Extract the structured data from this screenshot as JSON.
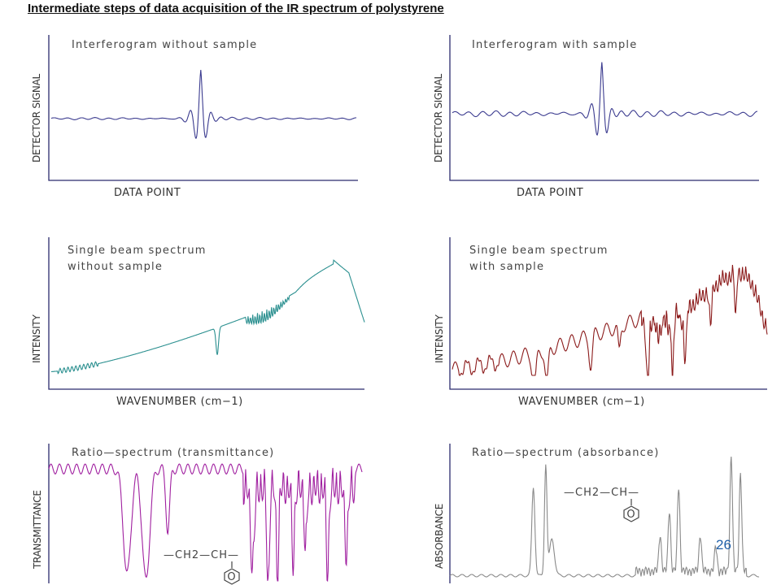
{
  "slide": {
    "title": "Intermediate steps of data acquisition of the IR spectrum of polystyrene",
    "page_number": "26"
  },
  "structure": {
    "top": "—CH2—CH—",
    "ring": "O"
  },
  "chart_data": [
    {
      "type": "line",
      "title": "Interferogram without sample",
      "xlabel": "DATA POINT",
      "ylabel": "DETECTOR SIGNAL",
      "color": "#3b3b8f",
      "shape": "interferogram-reference"
    },
    {
      "type": "line",
      "title": "Interferogram with sample",
      "xlabel": "DATA POINT",
      "ylabel": "DETECTOR SIGNAL",
      "color": "#3b3b8f",
      "shape": "interferogram-sample"
    },
    {
      "type": "line",
      "title": [
        "Single beam spectrum",
        "without sample"
      ],
      "xlabel": "WAVENUMBER (cm−1)",
      "ylabel": "INTENSITY",
      "color": "#2a8f8f",
      "shape": "single-beam-reference"
    },
    {
      "type": "line",
      "title": [
        "Single beam spectrum",
        "with sample"
      ],
      "xlabel": "WAVENUMBER (cm−1)",
      "ylabel": "INTENSITY",
      "color": "#8b1a1a",
      "shape": "single-beam-sample"
    },
    {
      "type": "line",
      "title": "Ratio—spectrum (transmittance)",
      "xlabel": "",
      "ylabel": "TRANSMITTANCE",
      "color": "#a020a0",
      "shape": "transmittance"
    },
    {
      "type": "line",
      "title": "Ratio—spectrum (absorbance)",
      "xlabel": "",
      "ylabel": "ABSORBANCE",
      "color": "#8a8a8a",
      "shape": "absorbance"
    }
  ]
}
